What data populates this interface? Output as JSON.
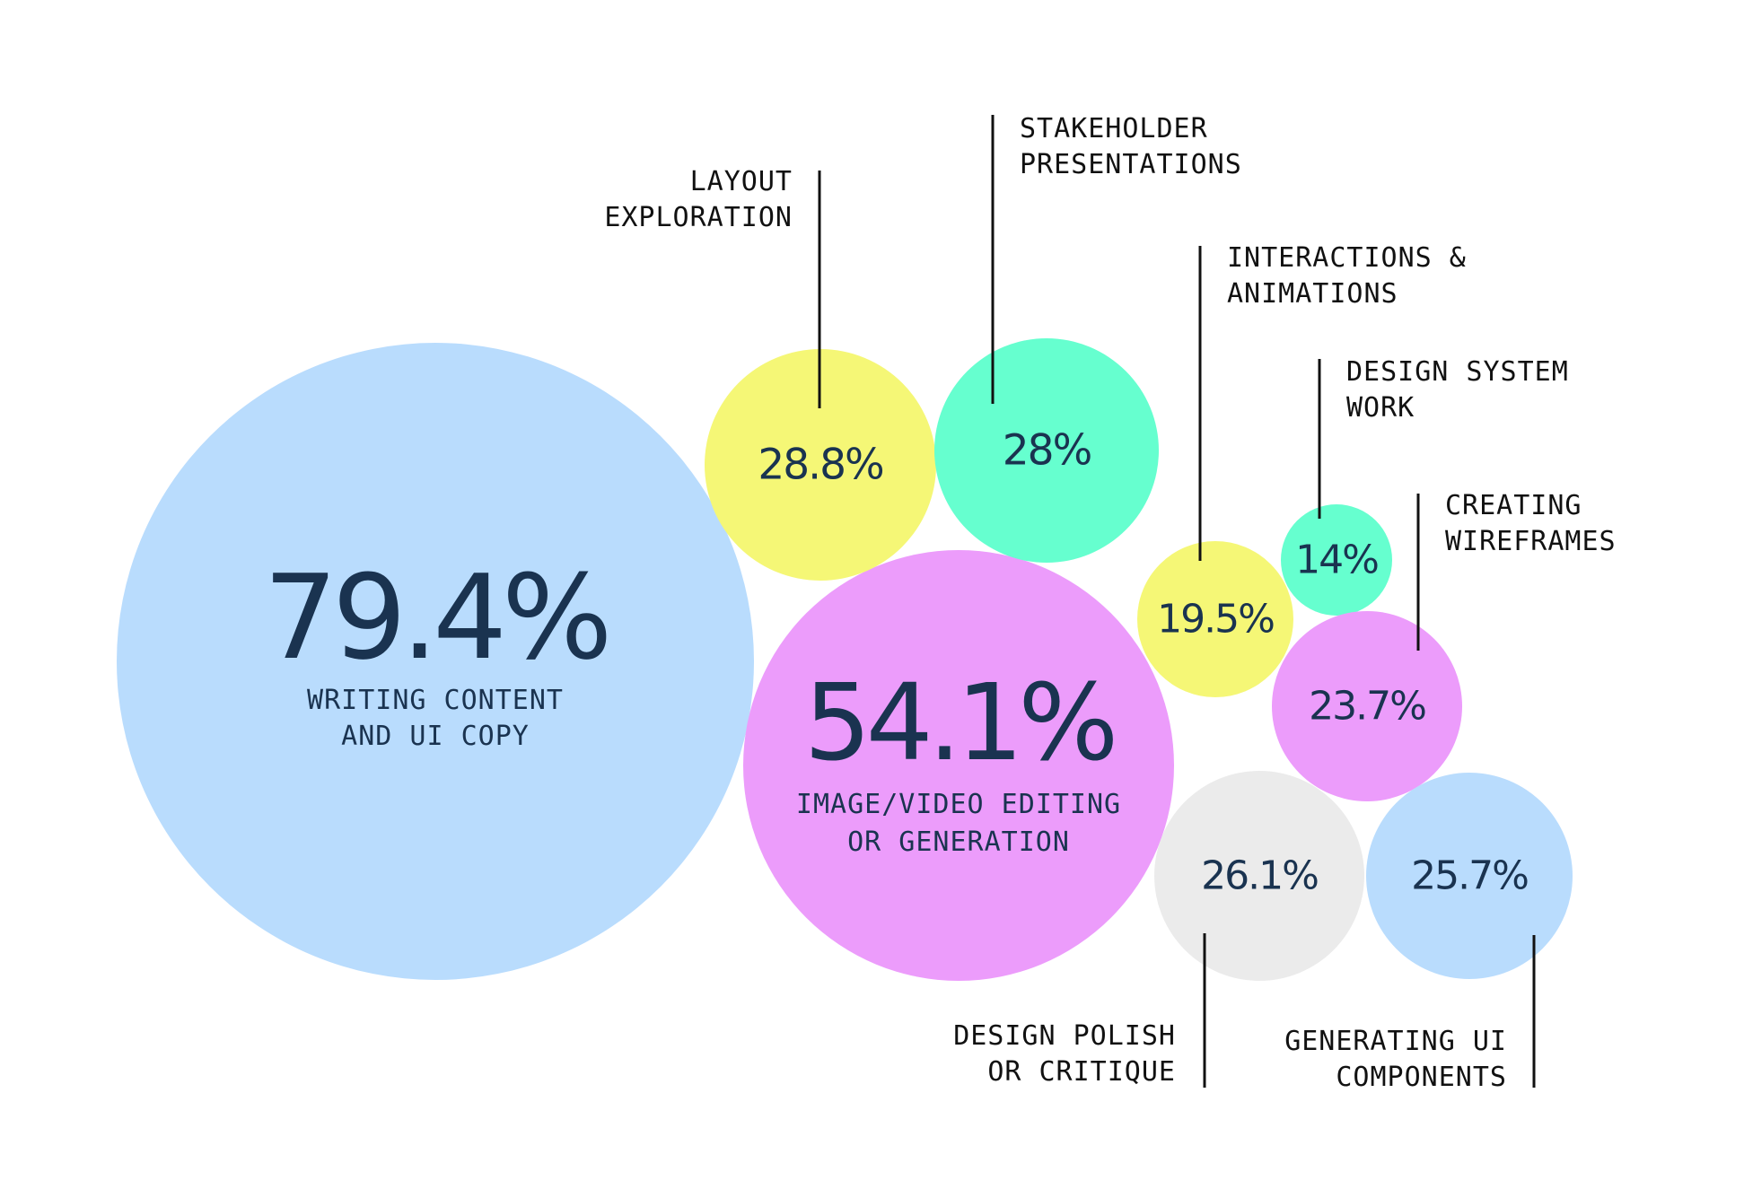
{
  "chart_data": {
    "type": "bubble",
    "unit": "%",
    "bubbles": [
      {
        "id": "writing",
        "value": 79.4,
        "value_label": "79.4%",
        "label_lines": [
          "WRITING CONTENT",
          "AND UI COPY"
        ],
        "label_position": "inside",
        "color": "#B9DCFD"
      },
      {
        "id": "image-video",
        "value": 54.1,
        "value_label": "54.1%",
        "label_lines": [
          "IMAGE/VIDEO EDITING",
          "OR GENERATION"
        ],
        "label_position": "inside",
        "color": "#EC9CFB"
      },
      {
        "id": "layout",
        "value": 28.8,
        "value_label": "28.8%",
        "label_lines": [
          "LAYOUT",
          "EXPLORATION"
        ],
        "label_position": "callout-left",
        "color": "#F5F776"
      },
      {
        "id": "stakeholder",
        "value": 28,
        "value_label": "28%",
        "label_lines": [
          "STAKEHOLDER",
          "PRESENTATIONS"
        ],
        "label_position": "callout-right",
        "color": "#66FFCF"
      },
      {
        "id": "interactions",
        "value": 19.5,
        "value_label": "19.5%",
        "label_lines": [
          "INTERACTIONS &",
          "ANIMATIONS"
        ],
        "label_position": "callout-right",
        "color": "#F5F776"
      },
      {
        "id": "design-system",
        "value": 14,
        "value_label": "14%",
        "label_lines": [
          "DESIGN SYSTEM",
          "WORK"
        ],
        "label_position": "callout-right",
        "color": "#66FFCF"
      },
      {
        "id": "wireframes",
        "value": 23.7,
        "value_label": "23.7%",
        "label_lines": [
          "CREATING",
          "WIREFRAMES"
        ],
        "label_position": "callout-right",
        "color": "#EC9CFB"
      },
      {
        "id": "polish",
        "value": 26.1,
        "value_label": "26.1%",
        "label_lines": [
          "DESIGN POLISH",
          "OR CRITIQUE"
        ],
        "label_position": "callout-bottom-left",
        "color": "#EBEBEB"
      },
      {
        "id": "ui-components",
        "value": 25.7,
        "value_label": "25.7%",
        "label_lines": [
          "GENERATING UI",
          "COMPONENTS"
        ],
        "label_position": "callout-bottom-left",
        "color": "#B9DCFD"
      }
    ]
  }
}
